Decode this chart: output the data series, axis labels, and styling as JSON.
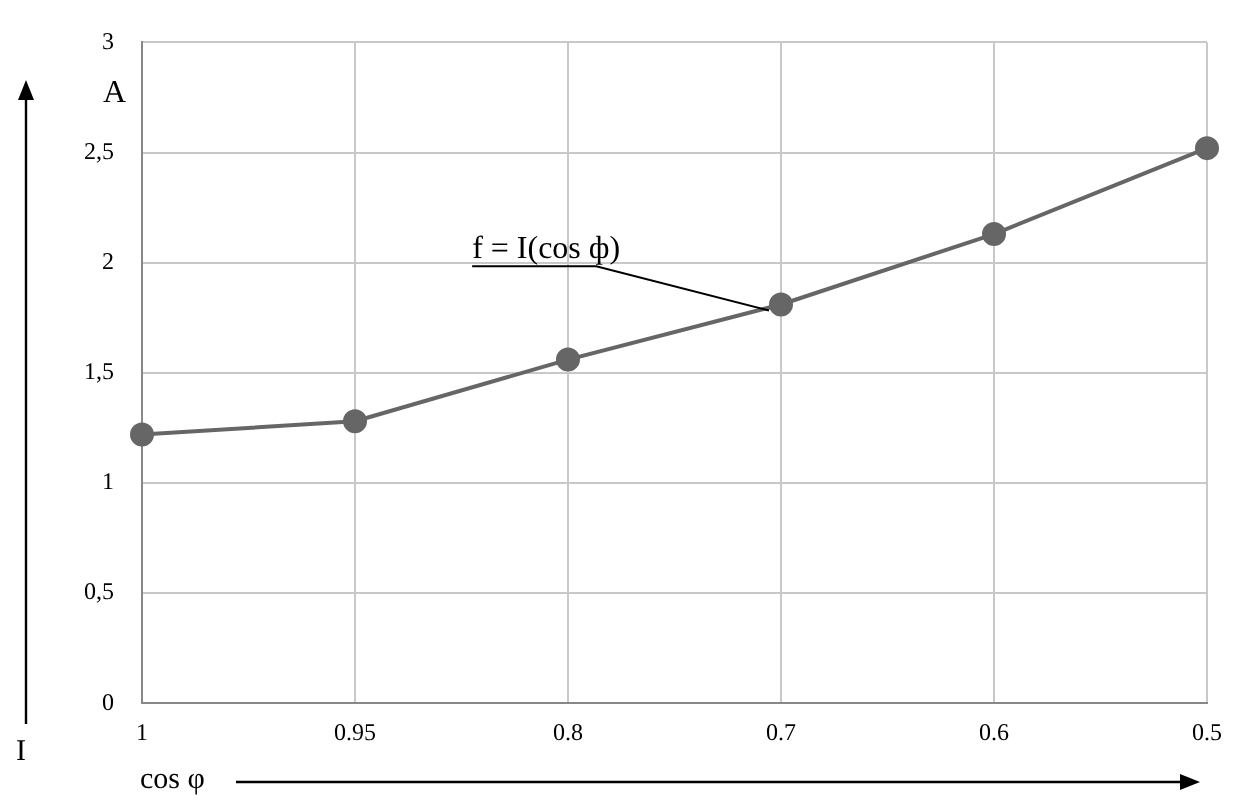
{
  "chart_data": {
    "type": "line",
    "xlabel": "cos φ",
    "ylabel": "I",
    "annotations": [
      "A",
      {
        "text": "f = I(cos ф)",
        "x": "0.7",
        "y": 1.81
      }
    ],
    "categories": [
      "1",
      "0.95",
      "0.8",
      "0.7",
      "0.6",
      "0.5"
    ],
    "series": [
      {
        "color": "#666666",
        "values": [
          1.22,
          1.28,
          1.56,
          1.81,
          2.13,
          2.52
        ]
      }
    ],
    "ylim": [
      0,
      3
    ],
    "yticks": [
      0,
      {
        "value": 0.5,
        "label": "0,5"
      },
      1,
      {
        "value": 1.5,
        "label": "1,5"
      },
      2,
      {
        "value": 2.5,
        "label": "2,5"
      },
      3
    ],
    "grid": true,
    "legend": false,
    "marker": "circle",
    "line_style": "solid"
  }
}
